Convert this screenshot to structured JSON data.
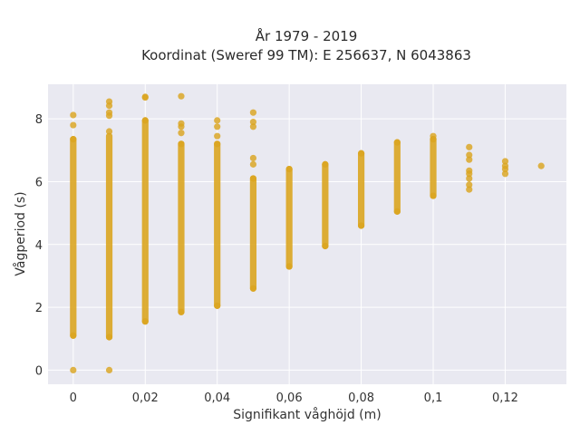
{
  "chart_data": {
    "type": "scatter",
    "title": "År 1979 - 2019",
    "subtitle": "Koordinat (Sweref 99 TM): E 256637, N 6043863",
    "xlabel": "Signifikant våghöjd (m)",
    "ylabel": "Vågperiod (s)",
    "xlim": [
      -0.007,
      0.137
    ],
    "ylim": [
      -0.45,
      9.1
    ],
    "xticks": [
      0,
      0.02,
      0.04,
      0.06,
      0.08,
      0.1,
      0.12
    ],
    "xtick_labels": [
      "0",
      "0,02",
      "0,04",
      "0,06",
      "0,08",
      "0,1",
      "0,12"
    ],
    "yticks": [
      0,
      2,
      4,
      6,
      8
    ],
    "ytick_labels": [
      "0",
      "2",
      "4",
      "6",
      "8"
    ],
    "grid": true,
    "marker_color": "#DAA520",
    "background_color": "#E9E9F1",
    "series": [
      {
        "points": [
          [
            0,
            0
          ],
          [
            0,
            8.12
          ],
          [
            0,
            7.8
          ],
          [
            0,
            7.35
          ],
          [
            0,
            1.1
          ],
          [
            0.01,
            0
          ],
          [
            0.01,
            8.55
          ],
          [
            0.01,
            8.42
          ],
          [
            0.01,
            8.2
          ],
          [
            0.01,
            8.1
          ],
          [
            0.01,
            7.6
          ],
          [
            0.01,
            1.05
          ],
          [
            0.02,
            8.7
          ],
          [
            0.02,
            8.68
          ],
          [
            0.02,
            7.95
          ],
          [
            0.02,
            1.55
          ],
          [
            0.03,
            8.72
          ],
          [
            0.03,
            7.85
          ],
          [
            0.03,
            7.75
          ],
          [
            0.03,
            7.55
          ],
          [
            0.03,
            7.2
          ],
          [
            0.03,
            1.85
          ],
          [
            0.04,
            7.95
          ],
          [
            0.04,
            7.75
          ],
          [
            0.04,
            7.45
          ],
          [
            0.04,
            7.2
          ],
          [
            0.04,
            2.05
          ],
          [
            0.05,
            8.2
          ],
          [
            0.05,
            7.9
          ],
          [
            0.05,
            7.75
          ],
          [
            0.05,
            6.75
          ],
          [
            0.05,
            6.55
          ],
          [
            0.05,
            6.1
          ],
          [
            0.05,
            2.6
          ],
          [
            0.06,
            6.4
          ],
          [
            0.06,
            3.3
          ],
          [
            0.07,
            6.55
          ],
          [
            0.07,
            3.95
          ],
          [
            0.08,
            6.9
          ],
          [
            0.08,
            4.6
          ],
          [
            0.09,
            7.25
          ],
          [
            0.09,
            5.05
          ],
          [
            0.1,
            7.45
          ],
          [
            0.1,
            7.35
          ],
          [
            0.1,
            5.55
          ],
          [
            0.11,
            7.1
          ],
          [
            0.11,
            6.85
          ],
          [
            0.11,
            6.7
          ],
          [
            0.11,
            6.35
          ],
          [
            0.11,
            6.25
          ],
          [
            0.11,
            6.1
          ],
          [
            0.11,
            5.9
          ],
          [
            0.11,
            5.75
          ],
          [
            0.12,
            6.65
          ],
          [
            0.12,
            6.5
          ],
          [
            0.12,
            6.4
          ],
          [
            0.12,
            6.25
          ],
          [
            0.13,
            6.5
          ]
        ],
        "dense_ranges": [
          {
            "x": 0,
            "y": [
              1.1,
              7.35
            ]
          },
          {
            "x": 0.01,
            "y": [
              1.05,
              7.45
            ]
          },
          {
            "x": 0.02,
            "y": [
              1.55,
              7.95
            ]
          },
          {
            "x": 0.03,
            "y": [
              1.85,
              7.2
            ]
          },
          {
            "x": 0.04,
            "y": [
              2.05,
              7.2
            ]
          },
          {
            "x": 0.05,
            "y": [
              2.6,
              6.1
            ]
          },
          {
            "x": 0.06,
            "y": [
              3.3,
              6.4
            ]
          },
          {
            "x": 0.07,
            "y": [
              3.95,
              6.55
            ]
          },
          {
            "x": 0.08,
            "y": [
              4.6,
              6.9
            ]
          },
          {
            "x": 0.09,
            "y": [
              5.05,
              7.25
            ]
          },
          {
            "x": 0.1,
            "y": [
              5.55,
              7.35
            ]
          }
        ]
      }
    ]
  }
}
